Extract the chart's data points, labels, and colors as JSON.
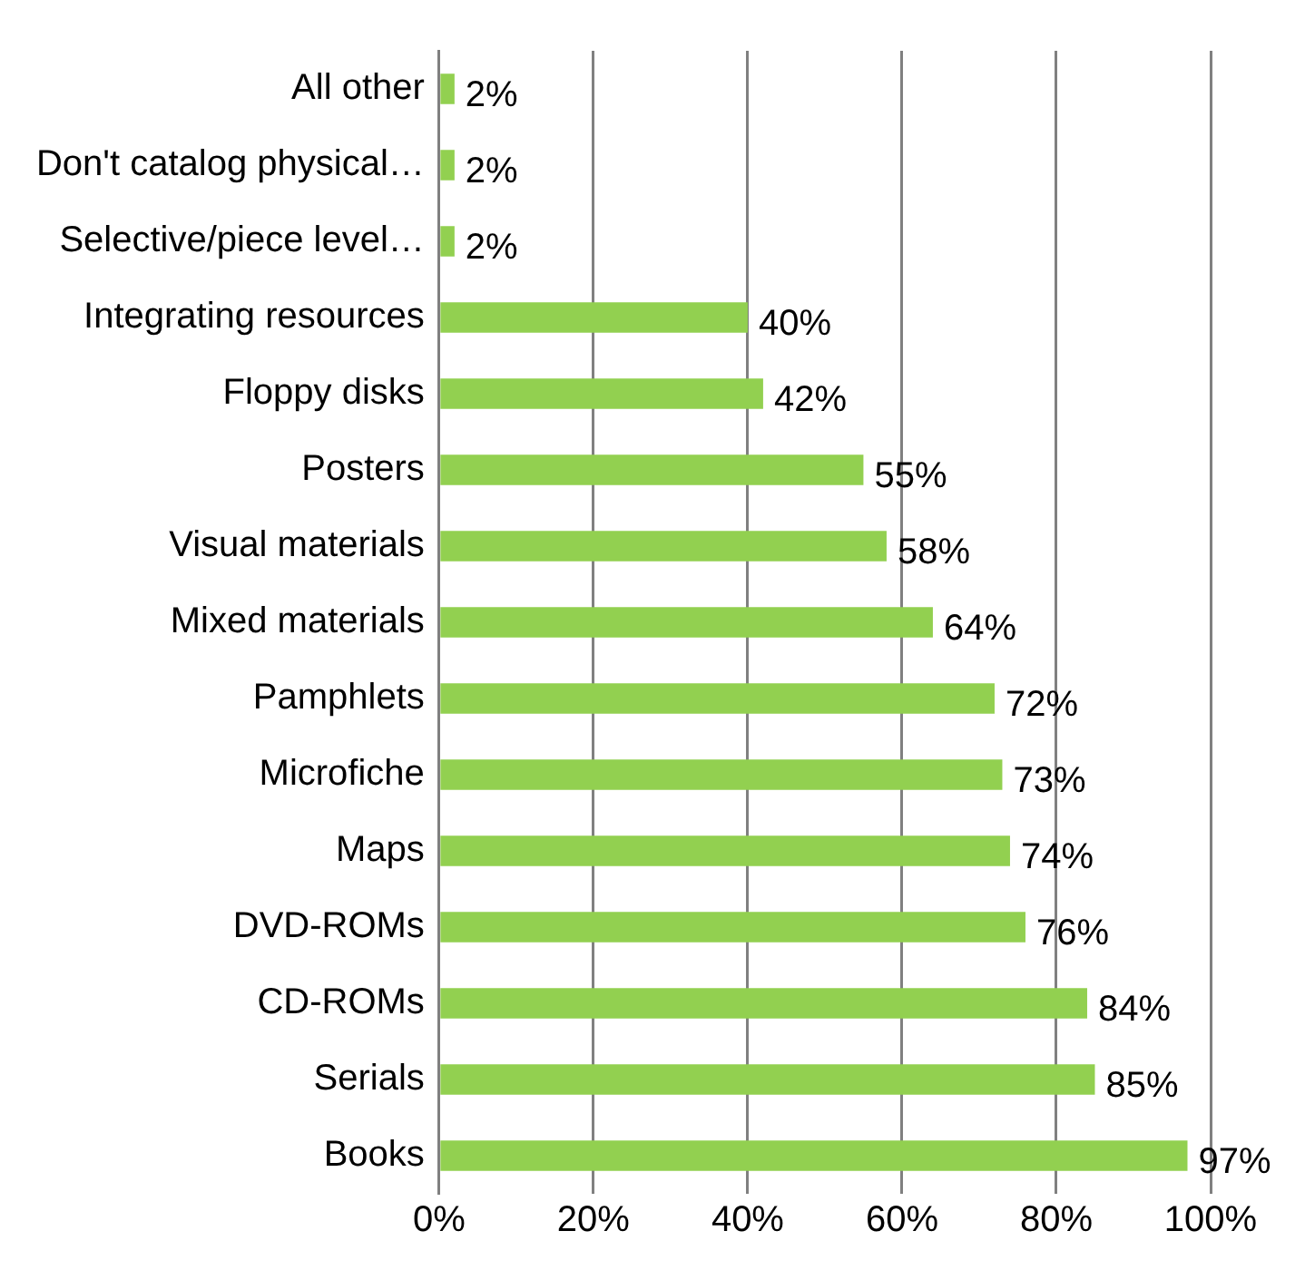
{
  "chart_data": {
    "type": "bar",
    "orientation": "horizontal",
    "categories": [
      "All other",
      "Don't catalog physical…",
      "Selective/piece level…",
      "Integrating resources",
      "Floppy disks",
      "Posters",
      "Visual materials",
      "Mixed materials",
      "Pamphlets",
      "Microfiche",
      "Maps",
      "DVD-ROMs",
      "CD-ROMs",
      "Serials",
      "Books"
    ],
    "values": [
      2,
      2,
      2,
      40,
      42,
      55,
      58,
      64,
      72,
      73,
      74,
      76,
      84,
      85,
      97
    ],
    "value_labels": [
      "2%",
      "2%",
      "2%",
      "40%",
      "42%",
      "55%",
      "58%",
      "64%",
      "72%",
      "73%",
      "74%",
      "76%",
      "84%",
      "85%",
      "97%"
    ],
    "color": "#92d050",
    "xlim": [
      0,
      100
    ],
    "xticks": [
      {
        "value": 0,
        "label": "0%"
      },
      {
        "value": 20,
        "label": "20%"
      },
      {
        "value": 40,
        "label": "40%"
      },
      {
        "value": 60,
        "label": "60%"
      },
      {
        "value": 80,
        "label": "80%"
      },
      {
        "value": 100,
        "label": "100%"
      }
    ],
    "grid": "x",
    "legend": false
  }
}
